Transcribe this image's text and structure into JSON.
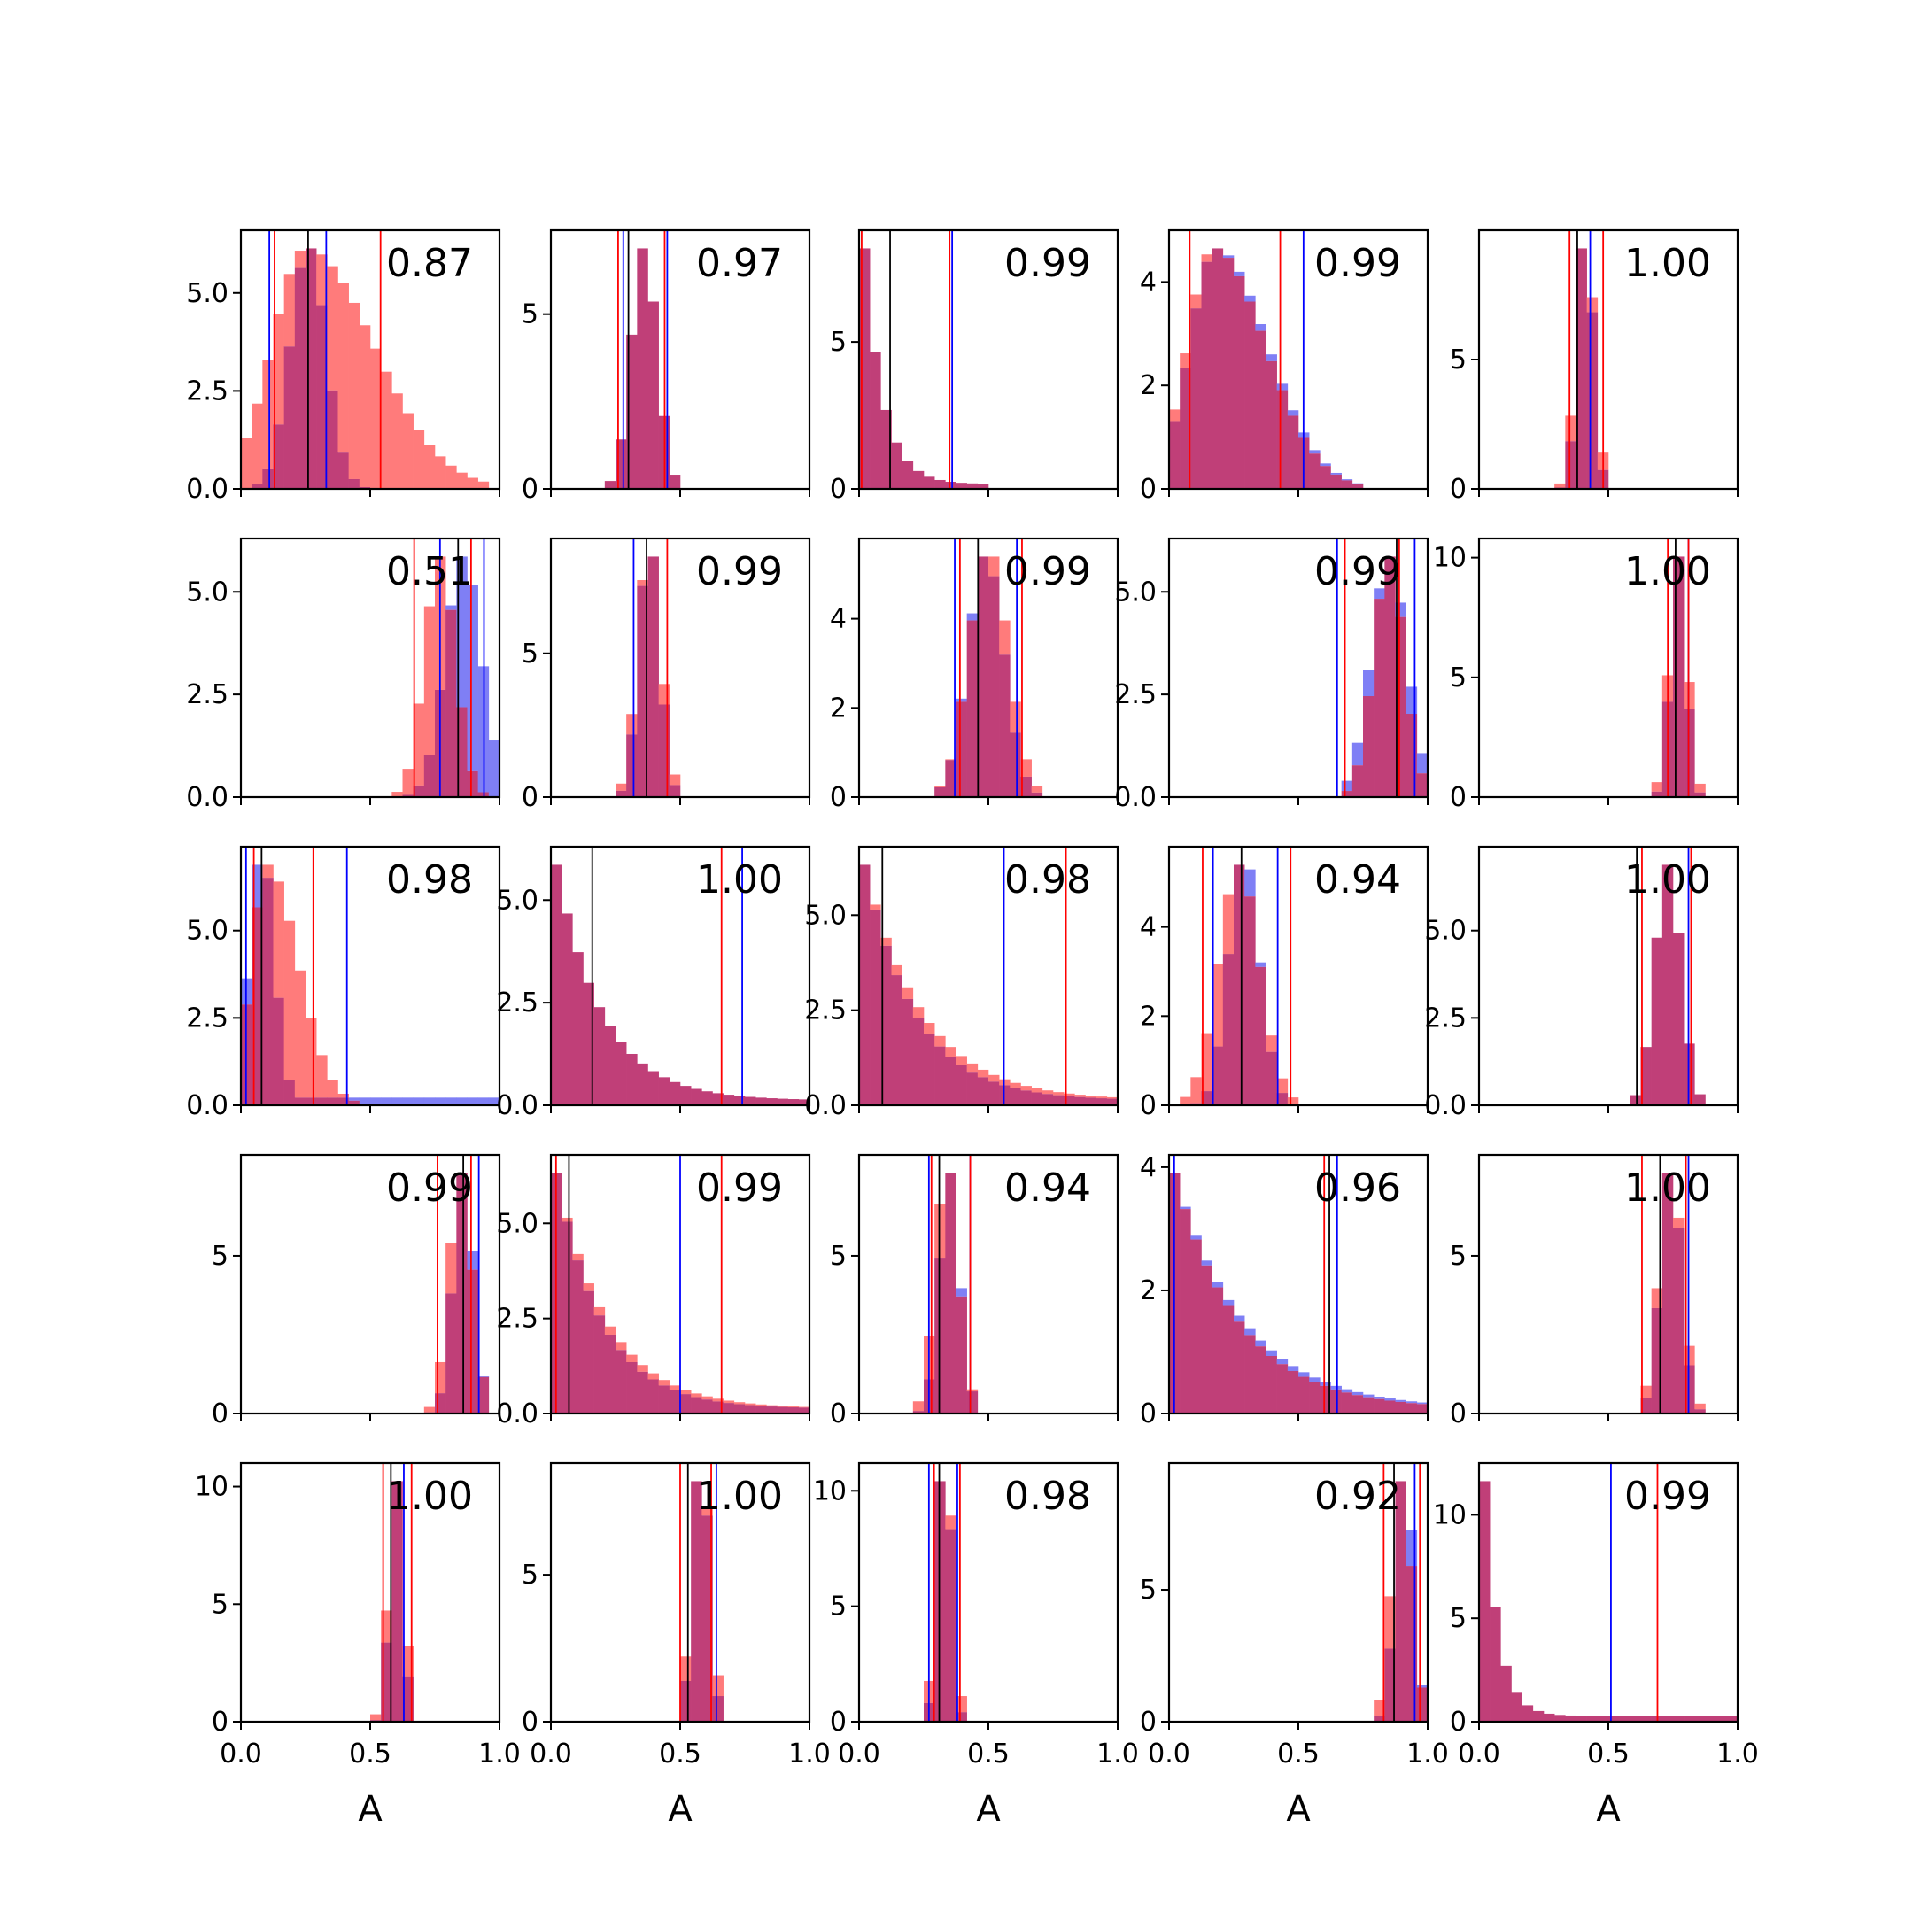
{
  "chart_data": {
    "type": "histogram-grid",
    "rows": 5,
    "cols": 5,
    "xlabel": "A",
    "xlim": [
      0,
      1
    ],
    "xticks": [
      "0.0",
      "0.5",
      "1.0"
    ],
    "series_colors": {
      "blue": "#0000ff",
      "red": "#ff0000",
      "median": "#000000"
    },
    "bar_colors": {
      "blue": "#7f7ff5",
      "red": "#ff7b7b",
      "overlap": "#c03f78"
    },
    "panels": [
      {
        "annotation": "0.87",
        "ymax": 6.6,
        "yticks": [
          "0.0",
          "2.5",
          "5.0"
        ],
        "ytick_values": [
          0,
          2.5,
          5
        ],
        "blue": {
          "mean": 0.26,
          "sd": 0.07
        },
        "red": {
          "mean": 0.25,
          "sd": 0.13,
          "skew": true
        },
        "vlines": {
          "blue": [
            0.11,
            0.33
          ],
          "red": [
            0.13,
            0.54
          ],
          "black": [
            0.26
          ]
        }
      },
      {
        "annotation": "0.97",
        "ymax": 7.4,
        "yticks": [
          "0",
          "5"
        ],
        "ytick_values": [
          0,
          5
        ],
        "blue": {
          "mean": 0.36,
          "sd": 0.05
        },
        "red": {
          "mean": 0.36,
          "sd": 0.05
        },
        "vlines": {
          "blue": [
            0.28,
            0.45
          ],
          "red": [
            0.26,
            0.44
          ],
          "black": [
            0.3
          ]
        }
      },
      {
        "annotation": "0.99",
        "ymax": 8.8,
        "yticks": [
          "0",
          "5"
        ],
        "ytick_values": [
          0,
          5
        ],
        "blue": {
          "mean": 0.02,
          "sd": 0.08,
          "decay": true
        },
        "red": {
          "mean": 0.02,
          "sd": 0.08,
          "decay": true
        },
        "vlines": {
          "blue": [
            0.36
          ],
          "red": [
            0.35,
            0.01
          ],
          "black": [
            0.12
          ]
        }
      },
      {
        "annotation": "0.99",
        "ymax": 5.0,
        "yticks": [
          "0",
          "2",
          "4"
        ],
        "ytick_values": [
          0,
          2,
          4
        ],
        "blue": {
          "mean": 0.18,
          "sd": 0.1,
          "skew": true
        },
        "red": {
          "mean": 0.17,
          "sd": 0.1,
          "skew": true
        },
        "vlines": {
          "blue": [
            0.52
          ],
          "red": [
            0.08,
            0.43
          ],
          "black": []
        }
      },
      {
        "annotation": "1.00",
        "ymax": 10.0,
        "yticks": [
          "0",
          "5"
        ],
        "ytick_values": [
          0,
          5
        ],
        "blue": {
          "mean": 0.41,
          "sd": 0.03
        },
        "red": {
          "mean": 0.41,
          "sd": 0.035
        },
        "vlines": {
          "blue": [
            0.43
          ],
          "red": [
            0.35,
            0.48
          ],
          "black": [
            0.38
          ]
        }
      },
      {
        "annotation": "0.51",
        "ymax": 6.3,
        "yticks": [
          "0.0",
          "2.5",
          "5.0"
        ],
        "ytick_values": [
          0,
          2.5,
          5
        ],
        "blue": {
          "mean": 0.86,
          "sd": 0.07
        },
        "red": {
          "mean": 0.77,
          "sd": 0.06
        },
        "vlines": {
          "blue": [
            0.77,
            0.94
          ],
          "red": [
            0.67,
            0.89
          ],
          "black": [
            0.84
          ]
        }
      },
      {
        "annotation": "0.99",
        "ymax": 9.0,
        "yticks": [
          "0",
          "5"
        ],
        "ytick_values": [
          0,
          5
        ],
        "blue": {
          "mean": 0.38,
          "sd": 0.04
        },
        "red": {
          "mean": 0.38,
          "sd": 0.045
        },
        "vlines": {
          "blue": [
            0.32
          ],
          "red": [
            0.45
          ],
          "black": [
            0.37
          ]
        }
      },
      {
        "annotation": "0.99",
        "ymax": 5.8,
        "yticks": [
          "0",
          "2",
          "4"
        ],
        "ytick_values": [
          0,
          2,
          4
        ],
        "blue": {
          "mean": 0.49,
          "sd": 0.07
        },
        "red": {
          "mean": 0.5,
          "sd": 0.075
        },
        "vlines": {
          "blue": [
            0.37,
            0.61
          ],
          "red": [
            0.39,
            0.63
          ],
          "black": [
            0.46
          ]
        }
      },
      {
        "annotation": "0.99",
        "ymax": 6.3,
        "yticks": [
          "0.0",
          "2.5",
          "5.0"
        ],
        "ytick_values": [
          0,
          2.5,
          5
        ],
        "blue": {
          "mean": 0.85,
          "sd": 0.07
        },
        "red": {
          "mean": 0.85,
          "sd": 0.06
        },
        "vlines": {
          "blue": [
            0.65,
            0.95
          ],
          "red": [
            0.68,
            0.89
          ],
          "black": [
            0.88
          ]
        }
      },
      {
        "annotation": "1.00",
        "ymax": 10.8,
        "yticks": [
          "0",
          "5",
          "10"
        ],
        "ytick_values": [
          0,
          5,
          10
        ],
        "blue": {
          "mean": 0.77,
          "sd": 0.03
        },
        "red": {
          "mean": 0.77,
          "sd": 0.035
        },
        "vlines": {
          "blue": [
            0.81
          ],
          "red": [
            0.73,
            0.81
          ],
          "black": [
            0.76
          ]
        }
      },
      {
        "annotation": "0.98",
        "ymax": 7.4,
        "yticks": [
          "0.0",
          "2.5",
          "5.0"
        ],
        "ytick_values": [
          0,
          2.5,
          5
        ],
        "blue": {
          "mean": 0.08,
          "sd": 0.05,
          "tail": true
        },
        "red": {
          "mean": 0.1,
          "sd": 0.06,
          "skew": true
        },
        "vlines": {
          "blue": [
            0.02,
            0.41
          ],
          "red": [
            0.05,
            0.28
          ],
          "black": [
            0.08
          ]
        }
      },
      {
        "annotation": "1.00",
        "ymax": 6.3,
        "yticks": [
          "0.0",
          "2.5",
          "5.0"
        ],
        "ytick_values": [
          0,
          2.5,
          5
        ],
        "blue": {
          "mean": 0.02,
          "sd": 0.2,
          "decay": true
        },
        "red": {
          "mean": 0.02,
          "sd": 0.2,
          "decay": true
        },
        "vlines": {
          "blue": [
            0.74
          ],
          "red": [
            0.66
          ],
          "black": [
            0.16
          ]
        }
      },
      {
        "annotation": "0.98",
        "ymax": 6.8,
        "yticks": [
          "0.0",
          "2.5",
          "5.0"
        ],
        "ytick_values": [
          0,
          2.5,
          5
        ],
        "blue": {
          "mean": 0.02,
          "sd": 0.22,
          "decay": true
        },
        "red": {
          "mean": 0.02,
          "sd": 0.25,
          "decay": true
        },
        "vlines": {
          "blue": [
            0.56
          ],
          "red": [
            0.8
          ],
          "black": [
            0.09
          ]
        }
      },
      {
        "annotation": "0.94",
        "ymax": 5.8,
        "yticks": [
          "0",
          "2",
          "4"
        ],
        "ytick_values": [
          0,
          2,
          4
        ],
        "blue": {
          "mean": 0.29,
          "sd": 0.06
        },
        "red": {
          "mean": 0.27,
          "sd": 0.08
        },
        "vlines": {
          "blue": [
            0.17,
            0.42
          ],
          "red": [
            0.13,
            0.47
          ],
          "black": [
            0.28
          ]
        }
      },
      {
        "annotation": "1.00",
        "ymax": 7.4,
        "yticks": [
          "0.0",
          "2.5",
          "5.0"
        ],
        "ytick_values": [
          0,
          2.5,
          5
        ],
        "blue": {
          "mean": 0.73,
          "sd": 0.05
        },
        "red": {
          "mean": 0.73,
          "sd": 0.05
        },
        "vlines": {
          "blue": [
            0.81
          ],
          "red": [
            0.63,
            0.82
          ],
          "black": [
            0.61
          ]
        }
      },
      {
        "annotation": "0.99",
        "ymax": 8.2,
        "yticks": [
          "0",
          "5"
        ],
        "ytick_values": [
          0,
          5
        ],
        "blue": {
          "mean": 0.86,
          "sd": 0.04
        },
        "red": {
          "mean": 0.85,
          "sd": 0.045
        },
        "vlines": {
          "blue": [
            0.92
          ],
          "red": [
            0.76,
            0.89
          ],
          "black": [
            0.86
          ]
        }
      },
      {
        "annotation": "0.99",
        "ymax": 6.8,
        "yticks": [
          "0.0",
          "2.5",
          "5.0"
        ],
        "ytick_values": [
          0,
          2.5,
          5
        ],
        "blue": {
          "mean": 0.02,
          "sd": 0.2,
          "decay": true
        },
        "red": {
          "mean": 0.02,
          "sd": 0.22,
          "decay": true
        },
        "vlines": {
          "blue": [
            0.5
          ],
          "red": [
            0.66,
            0.02
          ],
          "black": [
            0.07
          ]
        }
      },
      {
        "annotation": "0.94",
        "ymax": 8.2,
        "yticks": [
          "0",
          "5"
        ],
        "ytick_values": [
          0,
          5
        ],
        "blue": {
          "mean": 0.35,
          "sd": 0.04
        },
        "red": {
          "mean": 0.34,
          "sd": 0.045
        },
        "vlines": {
          "blue": [
            0.27,
            0.43
          ],
          "red": [
            0.28,
            0.43
          ],
          "black": [
            0.31
          ]
        }
      },
      {
        "annotation": "0.96",
        "ymax": 4.2,
        "yticks": [
          "0",
          "2",
          "4"
        ],
        "ytick_values": [
          0,
          2,
          4
        ],
        "blue": {
          "mean": 0.05,
          "sd": 0.3,
          "decay": true
        },
        "red": {
          "mean": 0.05,
          "sd": 0.28,
          "decay": true
        },
        "vlines": {
          "blue": [
            0.02,
            0.65
          ],
          "red": [
            0.6
          ],
          "black": [
            0.62
          ]
        }
      },
      {
        "annotation": "1.00",
        "ymax": 8.2,
        "yticks": [
          "0",
          "5"
        ],
        "ytick_values": [
          0,
          5
        ],
        "blue": {
          "mean": 0.74,
          "sd": 0.04
        },
        "red": {
          "mean": 0.74,
          "sd": 0.045
        },
        "vlines": {
          "blue": [
            0.81
          ],
          "red": [
            0.63,
            0.8
          ],
          "black": [
            0.7
          ]
        }
      },
      {
        "annotation": "1.00",
        "ymax": 11.0,
        "yticks": [
          "0",
          "5",
          "10"
        ],
        "ytick_values": [
          0,
          5,
          10
        ],
        "blue": {
          "mean": 0.6,
          "sd": 0.025
        },
        "red": {
          "mean": 0.6,
          "sd": 0.03
        },
        "vlines": {
          "blue": [
            0.63
          ],
          "red": [
            0.55,
            0.66
          ],
          "black": [
            0.58
          ]
        }
      },
      {
        "annotation": "1.00",
        "ymax": 8.8,
        "yticks": [
          "0",
          "5"
        ],
        "ytick_values": [
          0,
          5
        ],
        "blue": {
          "mean": 0.58,
          "sd": 0.03
        },
        "red": {
          "mean": 0.58,
          "sd": 0.035
        },
        "vlines": {
          "blue": [
            0.64
          ],
          "red": [
            0.5,
            0.62
          ],
          "black": [
            0.53
          ]
        }
      },
      {
        "annotation": "0.98",
        "ymax": 11.2,
        "yticks": [
          "0",
          "5",
          "10"
        ],
        "ytick_values": [
          0,
          5,
          10
        ],
        "blue": {
          "mean": 0.33,
          "sd": 0.025
        },
        "red": {
          "mean": 0.33,
          "sd": 0.03
        },
        "vlines": {
          "blue": [
            0.27,
            0.38
          ],
          "red": [
            0.29,
            0.39
          ],
          "black": [
            0.31
          ]
        }
      },
      {
        "annotation": "0.92",
        "ymax": 9.8,
        "yticks": [
          "0",
          "5"
        ],
        "ytick_values": [
          0,
          5
        ],
        "blue": {
          "mean": 0.91,
          "sd": 0.035
        },
        "red": {
          "mean": 0.9,
          "sd": 0.04
        },
        "vlines": {
          "blue": [
            0.95
          ],
          "red": [
            0.83,
            0.97
          ],
          "black": [
            0.87
          ]
        }
      },
      {
        "annotation": "0.99",
        "ymax": 12.5,
        "yticks": [
          "0",
          "5",
          "10"
        ],
        "ytick_values": [
          0,
          5,
          10
        ],
        "blue": {
          "mean": 0.01,
          "sd": 0.06,
          "decay": true
        },
        "red": {
          "mean": 0.01,
          "sd": 0.06,
          "decay": true
        },
        "vlines": {
          "blue": [
            0.51
          ],
          "red": [
            0.69
          ],
          "black": []
        }
      }
    ]
  }
}
